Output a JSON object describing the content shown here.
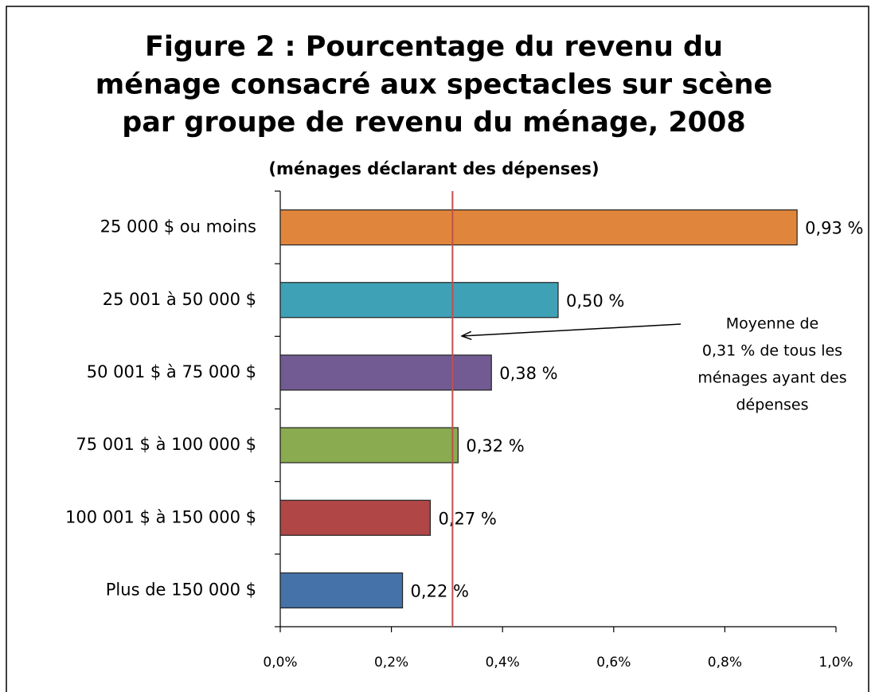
{
  "chart_data": {
    "type": "hbar",
    "title": [
      "Figure 2 : Pourcentage du revenu du",
      "ménage consacré aux spectacles sur scène",
      "par groupe de revenu du ménage, 2008"
    ],
    "subtitle": "(ménages déclarant des dépenses)",
    "categories": [
      "25 000 $ ou moins",
      "25 001 à 50 000 $",
      "50 001 $ à 75 000 $",
      "75 001 $ à 100 000 $",
      "100 001 $ à 150 000 $",
      "Plus de 150 000 $"
    ],
    "values": [
      0.93,
      0.5,
      0.38,
      0.32,
      0.27,
      0.22
    ],
    "value_labels": [
      "0,93 %",
      "0,50 %",
      "0,38 %",
      "0,32 %",
      "0,27 %",
      "0,22 %"
    ],
    "colors": [
      "#e0863c",
      "#3fa1b6",
      "#725a92",
      "#8aab50",
      "#b04646",
      "#4572a8"
    ],
    "xlim": [
      0,
      1
    ],
    "xticks": [
      {
        "value": 0,
        "label": "0,0%"
      },
      {
        "value": 0.2,
        "label": "0,2%"
      },
      {
        "value": 0.4,
        "label": "0,4%"
      },
      {
        "value": 0.6,
        "label": "0,6%"
      },
      {
        "value": 0.8,
        "label": "0,8%"
      },
      {
        "value": 1,
        "label": "1,0%"
      }
    ],
    "reference_line": {
      "value": 0.31,
      "color": "#c0504d",
      "label": [
        "Moyenne de",
        "0,31 % de tous les",
        "ménages ayant des",
        "dépenses"
      ]
    }
  }
}
